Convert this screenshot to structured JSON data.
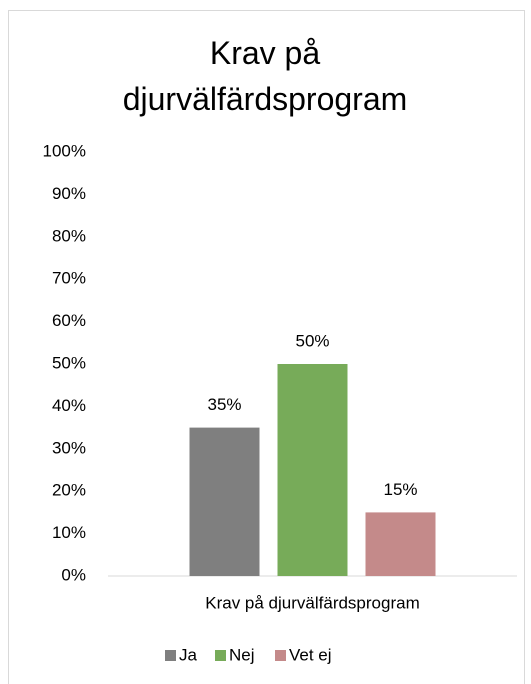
{
  "chart_data": {
    "type": "bar",
    "title": "Krav på djurvälfärdsprogram",
    "categories": [
      "Krav på djurvälfärdsprogram"
    ],
    "series": [
      {
        "name": "Ja",
        "color": "#7f7f7f",
        "values": [
          35
        ],
        "value_labels": [
          "35%"
        ]
      },
      {
        "name": "Nej",
        "color": "#77ab59",
        "values": [
          50
        ],
        "value_labels": [
          "50%"
        ]
      },
      {
        "name": "Vet ej",
        "color": "#c48a8a",
        "values": [
          15
        ],
        "value_labels": [
          "15%"
        ]
      }
    ],
    "ylim": [
      0,
      100
    ],
    "yticks": [
      {
        "value": 0,
        "label": "0%"
      },
      {
        "value": 10,
        "label": "10%"
      },
      {
        "value": 20,
        "label": "20%"
      },
      {
        "value": 30,
        "label": "30%"
      },
      {
        "value": 40,
        "label": "40%"
      },
      {
        "value": 50,
        "label": "50%"
      },
      {
        "value": 60,
        "label": "60%"
      },
      {
        "value": 70,
        "label": "70%"
      },
      {
        "value": 80,
        "label": "80%"
      },
      {
        "value": 90,
        "label": "90%"
      },
      {
        "value": 100,
        "label": "100%"
      }
    ],
    "grid": false,
    "legend": "bottom"
  }
}
